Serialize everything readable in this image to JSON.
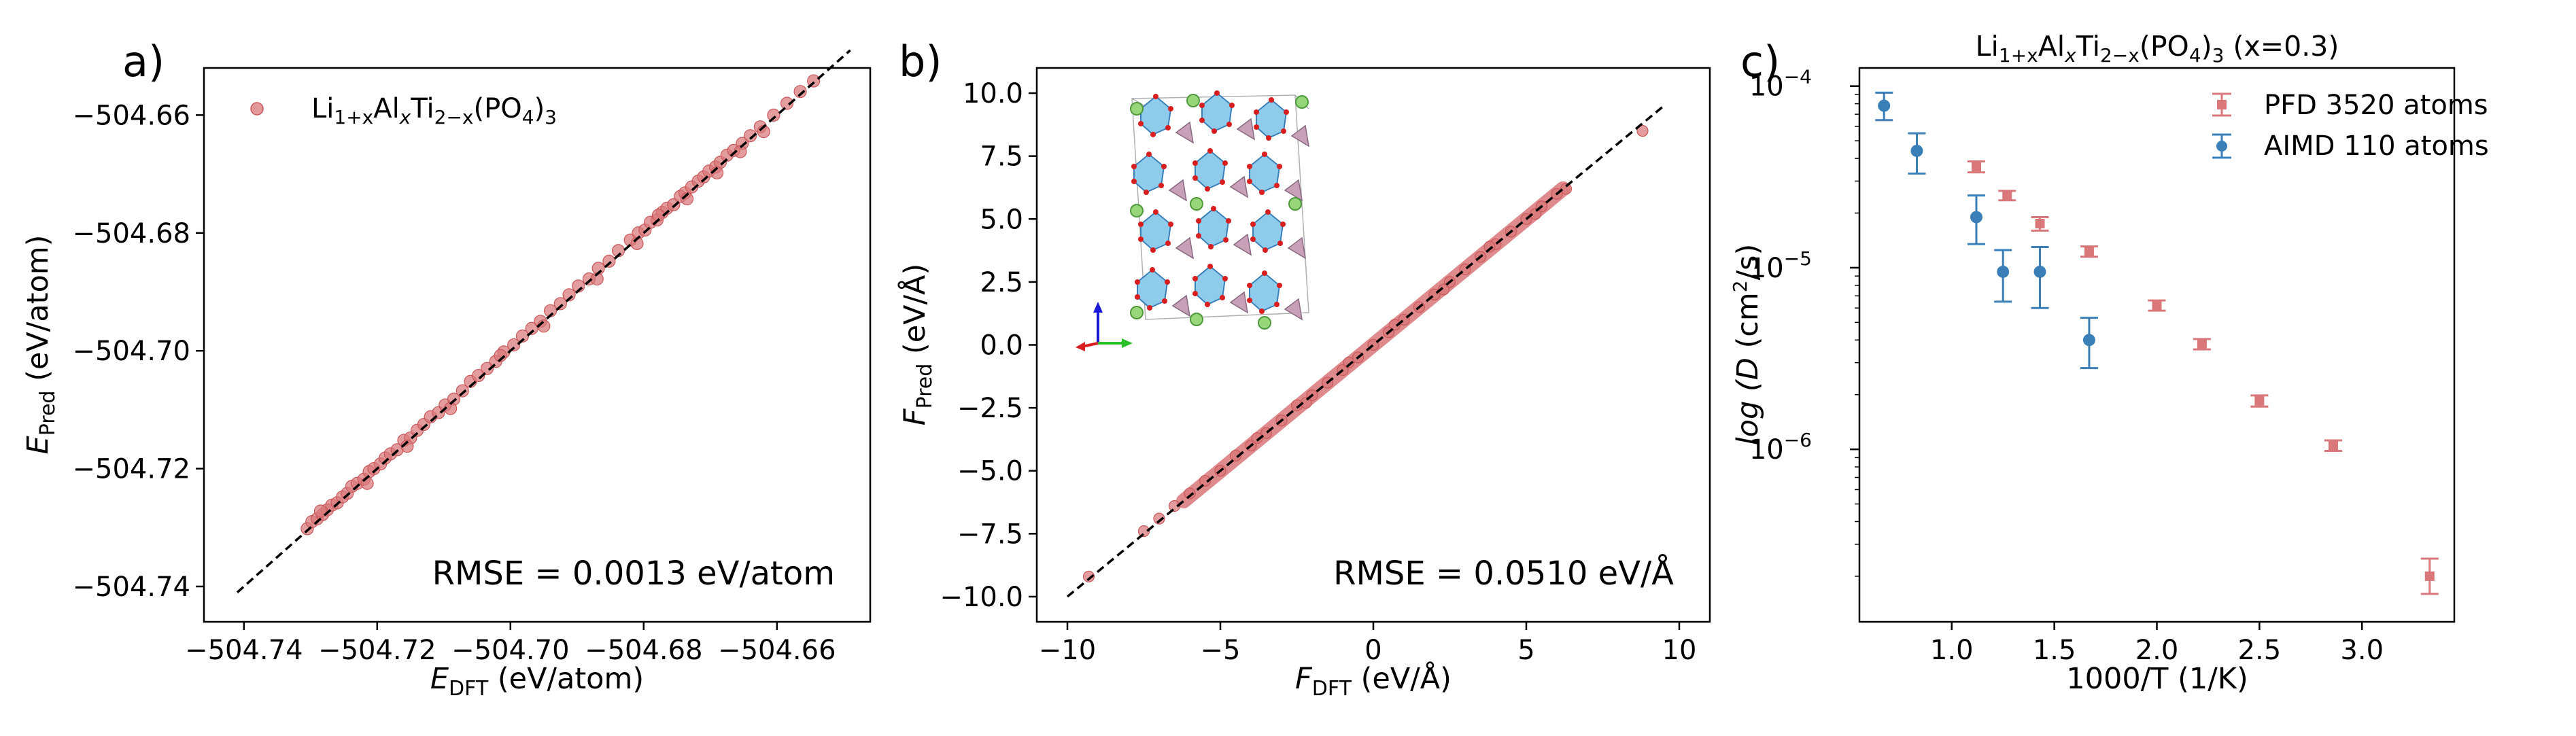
{
  "colors": {
    "red": "#d9777a",
    "red_edge": "#c8585b",
    "blue": "#3a7fb8",
    "axis": "#000000"
  },
  "chart_data": [
    {
      "panel": "a)",
      "type": "scatter",
      "xlabel": {
        "main": "E",
        "sub": "DFT",
        "unit": " (eV/atom)"
      },
      "ylabel": {
        "main": "E",
        "sub": "Pred",
        "unit": " (eV/atom)"
      },
      "xlim": [
        -504.746,
        -504.646
      ],
      "ylim": [
        -504.746,
        -504.652
      ],
      "xticks": [
        -504.74,
        -504.72,
        -504.7,
        -504.68,
        -504.66
      ],
      "xtick_labels": [
        "−504.74",
        "−504.72",
        "−504.70",
        "−504.68",
        "−504.66"
      ],
      "yticks": [
        -504.74,
        -504.72,
        -504.7,
        -504.68,
        -504.66
      ],
      "ytick_labels": [
        "−504.74",
        "−504.72",
        "−504.70",
        "−504.68",
        "−504.66"
      ],
      "legend": {
        "base": "Li",
        "sub1": "1+x",
        "mid1": "Al",
        "sub2": "x",
        "mid2": "Ti",
        "sub3": "2−x",
        "tail": "(PO",
        "sub4": "4",
        "end": ")",
        "sub5": "3"
      },
      "annotation": "RMSE = 0.0013 eV/atom",
      "diagonal": [
        -504.741,
        -504.649
      ],
      "points": [
        [
          -504.7305,
          -504.7302
        ],
        [
          -504.7298,
          -504.729
        ],
        [
          -504.729,
          -504.7285
        ],
        [
          -504.7282,
          -504.7278
        ],
        [
          -504.7275,
          -504.727
        ],
        [
          -504.7268,
          -504.7262
        ],
        [
          -504.726,
          -504.7258
        ],
        [
          -504.7252,
          -504.7248
        ],
        [
          -504.7245,
          -504.7242
        ],
        [
          -504.7238,
          -504.723
        ],
        [
          -504.723,
          -504.7225
        ],
        [
          -504.722,
          -504.7218
        ],
        [
          -504.7212,
          -504.7205
        ],
        [
          -504.7205,
          -504.72
        ],
        [
          -504.7195,
          -504.7192
        ],
        [
          -504.7188,
          -504.7182
        ],
        [
          -504.718,
          -504.7175
        ],
        [
          -504.717,
          -504.7168
        ],
        [
          -504.716,
          -504.7152
        ],
        [
          -504.715,
          -504.7148
        ],
        [
          -504.714,
          -504.7135
        ],
        [
          -504.713,
          -504.7125
        ],
        [
          -504.712,
          -504.7112
        ],
        [
          -504.7108,
          -504.7105
        ],
        [
          -504.7098,
          -504.7092
        ],
        [
          -504.7085,
          -504.7082
        ],
        [
          -504.7072,
          -504.7068
        ],
        [
          -504.706,
          -504.7052
        ],
        [
          -504.7048,
          -504.7042
        ],
        [
          -504.7035,
          -504.703
        ],
        [
          -504.7022,
          -504.7018
        ],
        [
          -504.701,
          -504.7002
        ],
        [
          -504.6995,
          -504.699
        ],
        [
          -504.6982,
          -504.6975
        ],
        [
          -504.6968,
          -504.6962
        ],
        [
          -504.6955,
          -504.695
        ],
        [
          -504.694,
          -504.6932
        ],
        [
          -504.6925,
          -504.692
        ],
        [
          -504.6912,
          -504.6905
        ],
        [
          -504.6898,
          -504.689
        ],
        [
          -504.6882,
          -504.6878
        ],
        [
          -504.6868,
          -504.686
        ],
        [
          -504.6852,
          -504.6848
        ],
        [
          -504.6838,
          -504.683
        ],
        [
          -504.682,
          -504.6812
        ],
        [
          -504.6808,
          -504.68
        ],
        [
          -504.6798,
          -504.6795
        ],
        [
          -504.679,
          -504.6782
        ],
        [
          -504.678,
          -504.6778
        ],
        [
          -504.6772,
          -504.6765
        ],
        [
          -504.6765,
          -504.6758
        ],
        [
          -504.6755,
          -504.6752
        ],
        [
          -504.6745,
          -504.6738
        ],
        [
          -504.6738,
          -504.6732
        ],
        [
          -504.6728,
          -504.6722
        ],
        [
          -504.6718,
          -504.6712
        ],
        [
          -504.671,
          -504.6705
        ],
        [
          -504.6702,
          -504.6695
        ],
        [
          -504.6692,
          -504.6688
        ],
        [
          -504.6685,
          -504.668
        ],
        [
          -504.6675,
          -504.6668
        ],
        [
          -504.6665,
          -504.666
        ],
        [
          -504.6652,
          -504.6648
        ],
        [
          -504.664,
          -504.6635
        ],
        [
          -504.6625,
          -504.662
        ],
        [
          -504.6605,
          -504.66
        ],
        [
          -504.6585,
          -504.658
        ],
        [
          -504.6565,
          -504.656
        ],
        [
          -504.6545,
          -504.6542
        ],
        [
          -504.7285,
          -504.7272
        ],
        [
          -504.7215,
          -504.7225
        ],
        [
          -504.7155,
          -504.7162
        ],
        [
          -504.709,
          -504.7098
        ],
        [
          -504.7015,
          -504.7008
        ],
        [
          -504.695,
          -504.6958
        ],
        [
          -504.687,
          -504.6878
        ],
        [
          -504.681,
          -504.6818
        ],
        [
          -504.6778,
          -504.677
        ],
        [
          -504.6735,
          -504.6742
        ],
        [
          -504.669,
          -504.6698
        ],
        [
          -504.6655,
          -504.6662
        ],
        [
          -504.662,
          -504.6628
        ]
      ]
    },
    {
      "panel": "b)",
      "type": "scatter",
      "xlabel": {
        "main": "F",
        "sub": "DFT",
        "unit": " (eV/Å)"
      },
      "ylabel": {
        "main": "F",
        "sub": "Pred",
        "unit": " (eV/Å)"
      },
      "xlim": [
        -11.0,
        11.0
      ],
      "ylim": [
        -11.0,
        11.0
      ],
      "xticks": [
        -10,
        -5,
        0,
        5,
        10
      ],
      "xtick_labels": [
        "−10",
        "−5",
        "0",
        "5",
        "10"
      ],
      "yticks": [
        -10.0,
        -7.5,
        -5.0,
        -2.5,
        0.0,
        2.5,
        5.0,
        7.5,
        10.0
      ],
      "ytick_labels": [
        "−10.0",
        "−7.5",
        "−5.0",
        "−2.5",
        "0.0",
        "2.5",
        "5.0",
        "7.5",
        "10.0"
      ],
      "annotation": "RMSE = 0.0510 eV/Å",
      "diagonal": [
        -10.0,
        9.5
      ],
      "points": [
        [
          -9.3,
          -9.2
        ],
        [
          -7.5,
          -7.4
        ],
        [
          -7.0,
          -6.9
        ],
        [
          -6.0,
          -5.9
        ],
        [
          -5.5,
          -5.4
        ],
        [
          -5.0,
          -5.0
        ],
        [
          -4.5,
          -4.4
        ],
        [
          -4.0,
          -4.0
        ],
        [
          -3.5,
          -3.5
        ],
        [
          -3.0,
          -3.0
        ],
        [
          -2.5,
          -2.4
        ],
        [
          -2.0,
          -2.0
        ],
        [
          -1.5,
          -1.5
        ],
        [
          -1.0,
          -1.0
        ],
        [
          -0.5,
          -0.5
        ],
        [
          0.0,
          0.0
        ],
        [
          0.5,
          0.5
        ],
        [
          1.0,
          1.0
        ],
        [
          1.5,
          1.5
        ],
        [
          2.0,
          2.0
        ],
        [
          2.5,
          2.5
        ],
        [
          3.0,
          3.0
        ],
        [
          3.5,
          3.5
        ],
        [
          4.0,
          4.0
        ],
        [
          4.5,
          4.5
        ],
        [
          5.0,
          5.0
        ],
        [
          5.5,
          5.5
        ],
        [
          6.0,
          6.0
        ],
        [
          6.3,
          6.2
        ],
        [
          8.8,
          8.5
        ],
        [
          -6.5,
          -6.4
        ],
        [
          -3.8,
          -3.7
        ],
        [
          -2.2,
          -2.3
        ],
        [
          -0.8,
          -0.7
        ],
        [
          0.7,
          0.8
        ],
        [
          2.3,
          2.2
        ],
        [
          3.8,
          3.9
        ],
        [
          5.3,
          5.2
        ]
      ],
      "inset": "crystal-structure"
    },
    {
      "panel": "c)",
      "type": "scatter",
      "title": {
        "base": "Li",
        "sub1": "1+x",
        "mid1": "Al",
        "sub2": "x",
        "mid2": "Ti",
        "sub3": "2−x",
        "tail": "(PO",
        "sub4": "4",
        "end": ")",
        "sub5": "3",
        "suffix": " (x=0.3)"
      },
      "xlabel": "1000/T (1/K)",
      "ylabel": {
        "pre": "log (",
        "ital": "D",
        "mid": " (cm",
        "sup": "2",
        "post": "/s)"
      },
      "yscale": "log",
      "xlim": [
        0.55,
        3.45
      ],
      "ylim_log10": [
        -6.95,
        -3.9
      ],
      "xticks": [
        1.0,
        1.5,
        2.0,
        2.5,
        3.0
      ],
      "xtick_labels": [
        "1.0",
        "1.5",
        "2.0",
        "2.5",
        "3.0"
      ],
      "yticks_log10": [
        -6,
        -5,
        -4
      ],
      "ytick_labels": [
        {
          "base": "10",
          "exp": "−6"
        },
        {
          "base": "10",
          "exp": "−5"
        },
        {
          "base": "10",
          "exp": "−4"
        }
      ],
      "series": [
        {
          "name": "PFD 3520 atoms",
          "color": "#d9777a",
          "marker": "square",
          "points": [
            {
              "x": 1.12,
              "y": 3.6e-05,
              "lo": 3.35e-05,
              "hi": 3.85e-05
            },
            {
              "x": 1.27,
              "y": 2.5e-05,
              "lo": 2.35e-05,
              "hi": 2.65e-05
            },
            {
              "x": 1.43,
              "y": 1.75e-05,
              "lo": 1.6e-05,
              "hi": 1.9e-05
            },
            {
              "x": 1.67,
              "y": 1.23e-05,
              "lo": 1.15e-05,
              "hi": 1.31e-05
            },
            {
              "x": 2.0,
              "y": 6.2e-06,
              "lo": 5.8e-06,
              "hi": 6.6e-06
            },
            {
              "x": 2.22,
              "y": 3.8e-06,
              "lo": 3.55e-06,
              "hi": 4.05e-06
            },
            {
              "x": 2.5,
              "y": 1.85e-06,
              "lo": 1.72e-06,
              "hi": 1.98e-06
            },
            {
              "x": 2.86,
              "y": 1.05e-06,
              "lo": 9.8e-07,
              "hi": 1.12e-06
            },
            {
              "x": 3.33,
              "y": 2e-07,
              "lo": 1.6e-07,
              "hi": 2.5e-07
            }
          ]
        },
        {
          "name": "AIMD 110 atoms",
          "color": "#3a7fb8",
          "marker": "circle",
          "points": [
            {
              "x": 0.67,
              "y": 7.8e-05,
              "lo": 6.5e-05,
              "hi": 9.2e-05
            },
            {
              "x": 0.83,
              "y": 4.4e-05,
              "lo": 3.3e-05,
              "hi": 5.5e-05
            },
            {
              "x": 1.12,
              "y": 1.9e-05,
              "lo": 1.35e-05,
              "hi": 2.5e-05
            },
            {
              "x": 1.25,
              "y": 9.5e-06,
              "lo": 6.5e-06,
              "hi": 1.25e-05
            },
            {
              "x": 1.43,
              "y": 9.5e-06,
              "lo": 6e-06,
              "hi": 1.3e-05
            },
            {
              "x": 1.67,
              "y": 4e-06,
              "lo": 2.8e-06,
              "hi": 5.3e-06
            }
          ]
        }
      ]
    }
  ]
}
